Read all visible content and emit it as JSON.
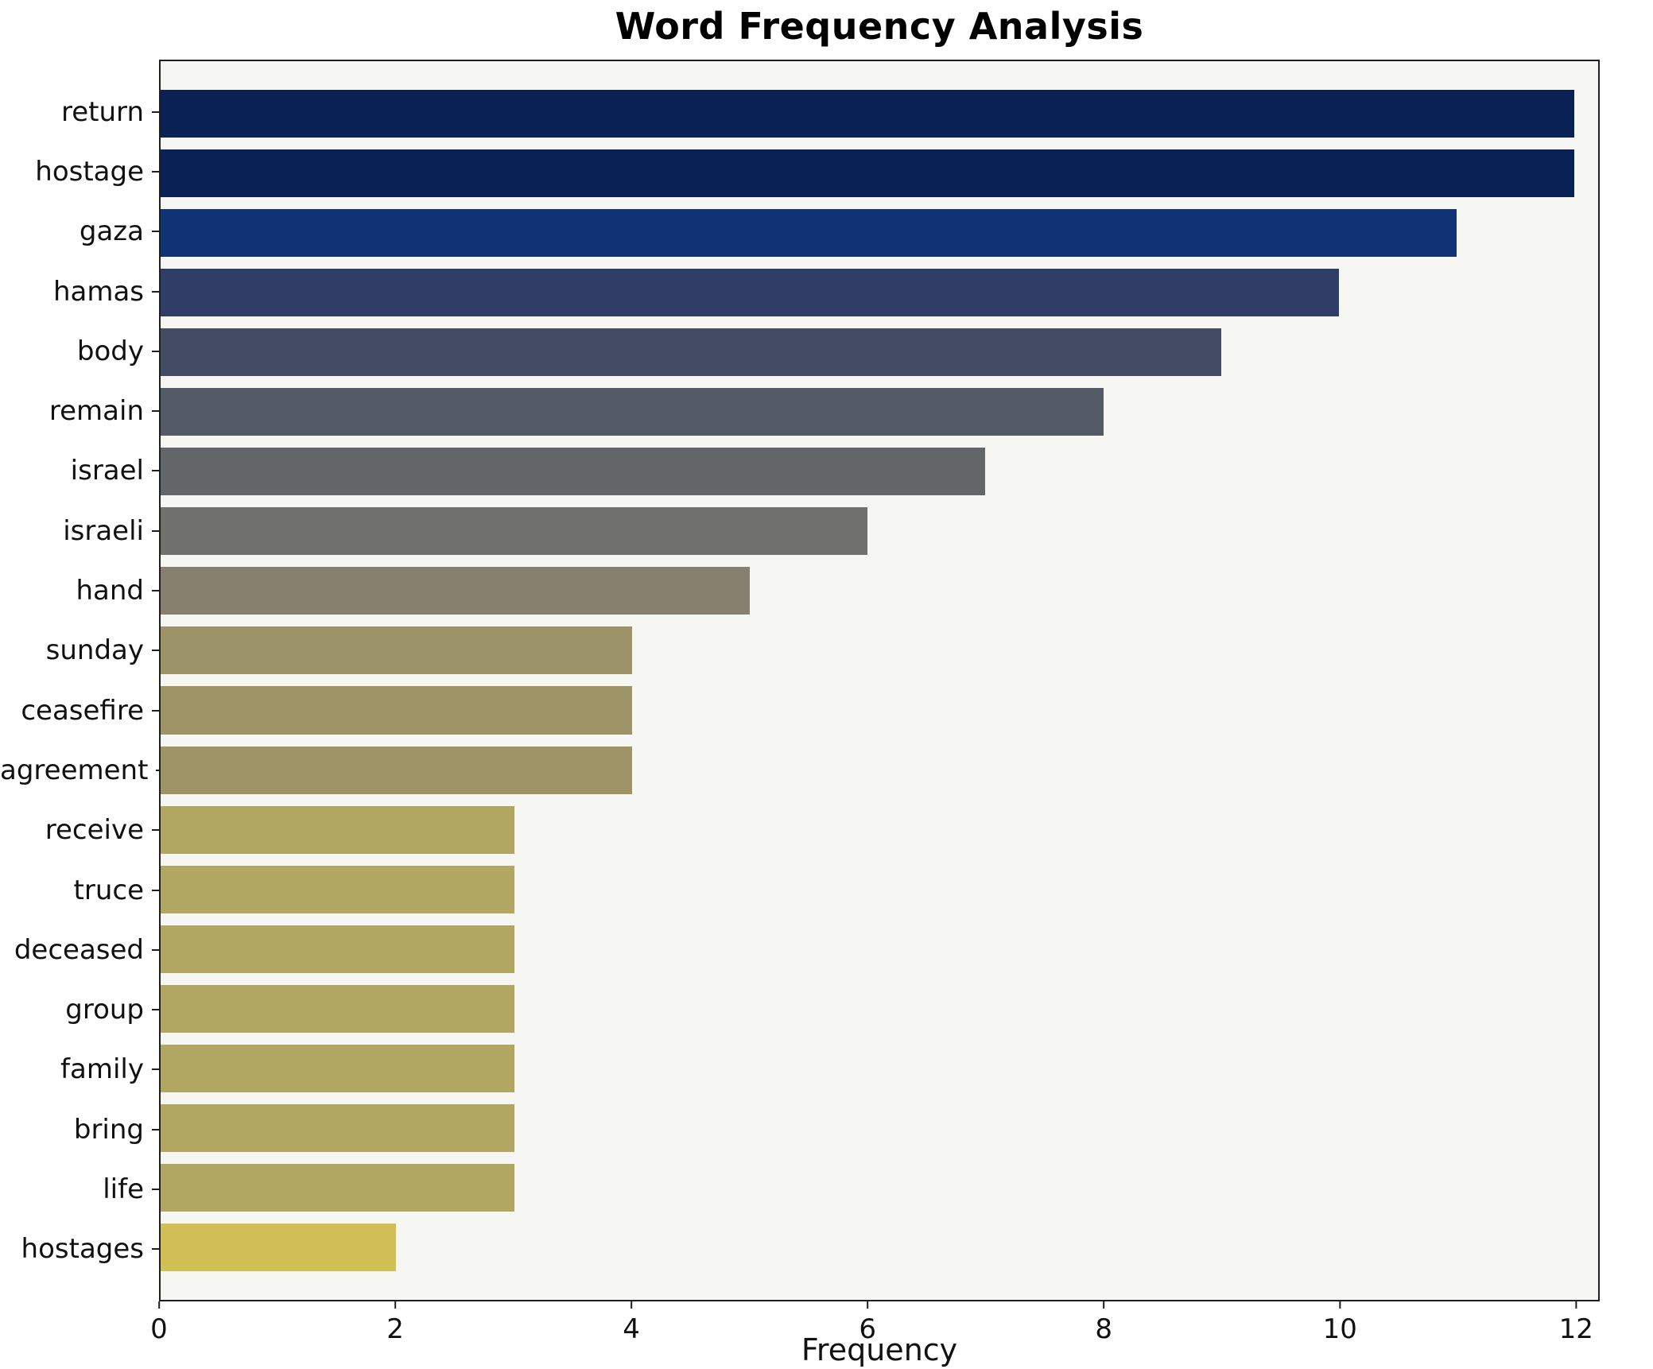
{
  "chart_data": {
    "type": "bar",
    "orientation": "horizontal",
    "title": "Word Frequency Analysis",
    "xlabel": "Frequency",
    "ylabel": "",
    "categories": [
      "return",
      "hostage",
      "gaza",
      "hamas",
      "body",
      "remain",
      "israel",
      "israeli",
      "hand",
      "sunday",
      "ceasefire",
      "agreement",
      "receive",
      "truce",
      "deceased",
      "group",
      "family",
      "bring",
      "life",
      "hostages"
    ],
    "values": [
      12,
      12,
      11,
      10,
      9,
      8,
      7,
      6,
      5,
      4,
      4,
      4,
      3,
      3,
      3,
      3,
      3,
      3,
      3,
      2
    ],
    "bar_colors": [
      "#0a2155",
      "#0a2155",
      "#0f3374",
      "#2f3e67",
      "#444b64",
      "#535965",
      "#636668",
      "#70706c",
      "#86816f",
      "#9c9368",
      "#9e9468",
      "#9e9468",
      "#b1a662",
      "#b1a662",
      "#b1a662",
      "#b1a662",
      "#b1a662",
      "#b1a662",
      "#b1a662",
      "#d2bf55"
    ],
    "xlim": [
      0,
      12.2
    ],
    "xticks": [
      0,
      2,
      4,
      6,
      8,
      10,
      12
    ],
    "grid": false,
    "legend": "none",
    "plot_background": "#f6f6f3",
    "figure_background": "#ffffff"
  }
}
